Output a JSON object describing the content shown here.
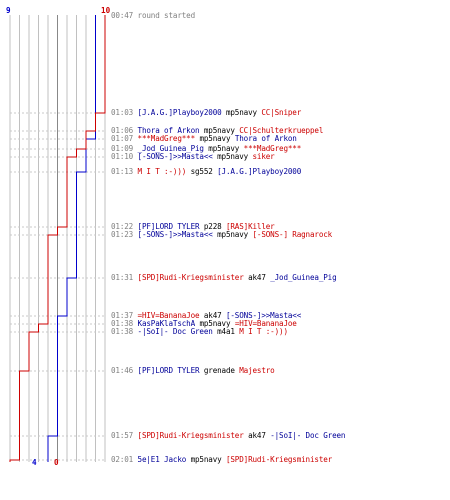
{
  "teams": {
    "blue": {
      "start": "9",
      "end": "4",
      "color": "#0000cc"
    },
    "red": {
      "start": "10",
      "end": "0",
      "color": "#cc0000"
    }
  },
  "colors": {
    "blue_text": "#000099",
    "red_text": "#cc0000",
    "time": "#808080",
    "weapon": "#000000"
  },
  "events": [
    {
      "time": "00:47",
      "killer": "",
      "weapon": "round started",
      "victim": "",
      "kc": "gray",
      "vc": "gray"
    },
    {
      "time": "01:03",
      "killer": "[J.A.G.]Playboy2000",
      "weapon": "mp5navy",
      "victim": "CC|Sniper",
      "kc": "blue",
      "vc": "red"
    },
    {
      "time": "01:06",
      "killer": "Thora of Arkon",
      "weapon": "mp5navy",
      "victim": "CC|Schulterkrueppel",
      "kc": "blue",
      "vc": "red"
    },
    {
      "time": "01:07",
      "killer": "***MadGreg***",
      "weapon": "mp5navy",
      "victim": "Thora of Arkon",
      "kc": "red",
      "vc": "blue"
    },
    {
      "time": "01:09",
      "killer": "_Jod_Guinea_Pig",
      "weapon": "mp5navy",
      "victim": "***MadGreg***",
      "kc": "blue",
      "vc": "red"
    },
    {
      "time": "01:10",
      "killer": "[-SONS-]>>Masta<<",
      "weapon": "mp5navy",
      "victim": "siker",
      "kc": "blue",
      "vc": "red"
    },
    {
      "time": "01:13",
      "killer": "M I T   :-)))",
      "weapon": "sg552",
      "victim": "[J.A.G.]Playboy2000",
      "kc": "red",
      "vc": "blue"
    },
    {
      "time": "01:22",
      "killer": "[PF]LORD TYLER",
      "weapon": "p228",
      "victim": "[RAS]Killer",
      "kc": "blue",
      "vc": "red"
    },
    {
      "time": "01:23",
      "killer": "[-SONS-]>>Masta<<",
      "weapon": "mp5navy",
      "victim": "[-SONS-] Ragnarock",
      "kc": "blue",
      "vc": "red"
    },
    {
      "time": "01:31",
      "killer": "[SPD]Rudi-Kriegsminister",
      "weapon": "ak47",
      "victim": "_Jod_Guinea_Pig",
      "kc": "red",
      "vc": "blue"
    },
    {
      "time": "01:37",
      "killer": "=HIV=BananaJoe",
      "weapon": "ak47",
      "victim": "[-SONS-]>>Masta<<",
      "kc": "red",
      "vc": "blue"
    },
    {
      "time": "01:38",
      "killer": "KasPaKlaTschA",
      "weapon": "mp5navy",
      "victim": "=HIV=BananaJoe",
      "kc": "blue",
      "vc": "red"
    },
    {
      "time": "01:38",
      "killer": "-|SoI|- Doc Green",
      "weapon": "m4a1",
      "victim": "M I T   :-)))",
      "kc": "blue",
      "vc": "red"
    },
    {
      "time": "01:46",
      "killer": "[PF]LORD TYLER",
      "weapon": "grenade",
      "victim": "Majestro",
      "kc": "blue",
      "vc": "red"
    },
    {
      "time": "01:57",
      "killer": "[SPD]Rudi-Kriegsminister",
      "weapon": "ak47",
      "victim": "-|SoI|- Doc Green",
      "kc": "red",
      "vc": "blue"
    },
    {
      "time": "02:01",
      "killer": "5e|E1 Jacko",
      "weapon": "mp5navy",
      "victim": "[SPD]Rudi-Kriegsminister",
      "kc": "blue",
      "vc": "red"
    }
  ]
}
